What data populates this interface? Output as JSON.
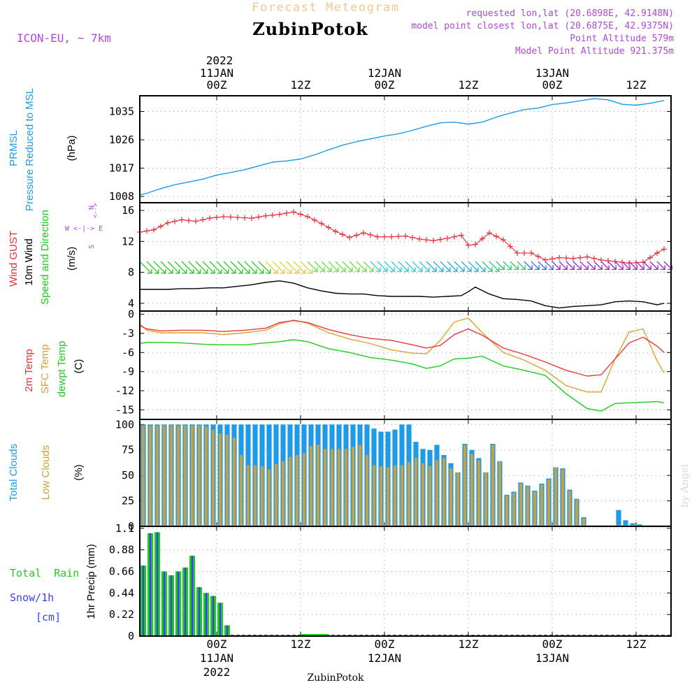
{
  "header": {
    "title": "Forecast Meteogram",
    "station": "ZubinPotok",
    "model": "ICON-EU, ~ 7km",
    "requested": "requested lon,lat (20.6898E, 42.9148N)",
    "closest": "model point closest lon,lat (20.6875E, 42.9375N)",
    "point_altitude": "Point Altitude 579m",
    "model_altitude": "Model Point Altitude 921.375m",
    "footer_station": "ZubinPotok",
    "credit": "by Angel"
  },
  "colors": {
    "pressure": "#1e9be8",
    "gust": "#e8303a",
    "wind": "#000000",
    "t2m": "#e83a3a",
    "sfc": "#e0a030",
    "dewpt": "#20cc20",
    "total_clouds": "#1e9be8",
    "low_clouds": "#c8a040",
    "rain": "#20cc20",
    "snow": "#3344ee",
    "title": "#f0c890",
    "info": "#b048d8"
  },
  "time_axis": {
    "top_year": "2022",
    "top_labels": [
      {
        "day": "11JAN",
        "hour": "00Z",
        "h": 0
      },
      {
        "day": "",
        "hour": "12Z",
        "h": 12
      },
      {
        "day": "12JAN",
        "hour": "00Z",
        "h": 24
      },
      {
        "day": "",
        "hour": "12Z",
        "h": 36
      },
      {
        "day": "13JAN",
        "hour": "00Z",
        "h": 48
      },
      {
        "day": "",
        "hour": "12Z",
        "h": 60
      }
    ],
    "bottom_year": "2022",
    "start_hour": -11,
    "end_hour": 65
  },
  "chart_data": [
    {
      "type": "line",
      "panel": "pressure",
      "ylabels": [
        "PRMSL",
        "Pressure Reduced to MSL",
        "(hPa)"
      ],
      "yticks": [
        1008,
        1017,
        1026,
        1035
      ],
      "ylim": [
        1006,
        1040
      ],
      "x": [
        -11,
        -10,
        -8,
        -6,
        -4,
        -2,
        0,
        2,
        4,
        6,
        8,
        10,
        12,
        14,
        16,
        18,
        20,
        22,
        24,
        26,
        28,
        30,
        32,
        34,
        36,
        38,
        40,
        42,
        44,
        46,
        48,
        50,
        52,
        54,
        56,
        58,
        60,
        62,
        64
      ],
      "series": [
        {
          "name": "PRMSL",
          "values": [
            1008.5,
            1009,
            1010.5,
            1011.7,
            1012.6,
            1013.5,
            1014.8,
            1015.6,
            1016.5,
            1017.7,
            1018.9,
            1019.3,
            1019.9,
            1021.2,
            1022.8,
            1024.3,
            1025.4,
            1026.3,
            1027.2,
            1027.9,
            1029.0,
            1030.3,
            1031.4,
            1031.6,
            1031.0,
            1031.6,
            1033.2,
            1034.5,
            1035.6,
            1036.1,
            1037.2,
            1037.7,
            1038.4,
            1039.1,
            1038.7,
            1037.3,
            1037.0,
            1037.6,
            1038.5
          ]
        }
      ]
    },
    {
      "type": "line",
      "panel": "wind",
      "ylabels": [
        "Wind GUST",
        "10m Wind",
        "Speed and Direction",
        "(m/s)"
      ],
      "compass": "N\nW <-|-> E\nS",
      "yticks": [
        4,
        8,
        12,
        16
      ],
      "ylim": [
        3,
        17
      ],
      "x": [
        -11,
        -9,
        -7,
        -5,
        -3,
        -1,
        1,
        3,
        5,
        7,
        9,
        11,
        13,
        15,
        17,
        19,
        21,
        23,
        25,
        27,
        29,
        31,
        33,
        35,
        36,
        37,
        39,
        41,
        43,
        45,
        47,
        49,
        51,
        53,
        55,
        57,
        59,
        61,
        63,
        64
      ],
      "series": [
        {
          "name": "Wind GUST",
          "values": [
            13.2,
            13.5,
            14.4,
            14.8,
            14.6,
            15.0,
            15.2,
            15.1,
            15.0,
            15.3,
            15.5,
            15.8,
            15.2,
            14.3,
            13.3,
            12.5,
            13.1,
            12.6,
            12.6,
            12.7,
            12.3,
            12.1,
            12.4,
            12.8,
            11.5,
            11.6,
            13.1,
            12.2,
            10.5,
            10.5,
            9.6,
            9.9,
            9.8,
            10.0,
            9.6,
            9.4,
            9.2,
            9.3,
            10.5,
            11.0
          ]
        },
        {
          "name": "10m Wind",
          "values": [
            5.8,
            5.8,
            5.8,
            5.9,
            5.9,
            6.0,
            6.0,
            6.2,
            6.4,
            6.7,
            6.9,
            6.6,
            6.0,
            5.6,
            5.3,
            5.2,
            5.2,
            5.0,
            4.9,
            4.9,
            4.9,
            4.8,
            4.9,
            5.0,
            5.5,
            6.1,
            5.2,
            4.6,
            4.5,
            4.3,
            3.7,
            3.4,
            3.6,
            3.7,
            3.8,
            4.2,
            4.3,
            4.2,
            3.8,
            4.0
          ]
        }
      ],
      "direction": "NW"
    },
    {
      "type": "line",
      "panel": "temperature",
      "ylabels": [
        "2m Temp",
        "SFC Temp",
        "dewpt Temp",
        "(C)"
      ],
      "yticks": [
        0,
        -3,
        -6,
        -9,
        -12,
        -15
      ],
      "ylim": [
        -16.5,
        0.5
      ],
      "x": [
        -11,
        -10,
        -8,
        -5,
        -2,
        1,
        4,
        7,
        9,
        11,
        13,
        16,
        19,
        22,
        25,
        28,
        30,
        32,
        34,
        36,
        38,
        41,
        44,
        47,
        50,
        53,
        55,
        57,
        59,
        61,
        63,
        64
      ],
      "series": [
        {
          "name": "2m Temp",
          "values": [
            -1.8,
            -2.3,
            -2.6,
            -2.5,
            -2.5,
            -2.7,
            -2.5,
            -2.2,
            -1.3,
            -1.0,
            -1.3,
            -2.4,
            -3.2,
            -3.8,
            -4.1,
            -4.8,
            -5.3,
            -4.9,
            -3.2,
            -2.3,
            -3.3,
            -5.3,
            -6.3,
            -7.5,
            -8.8,
            -9.7,
            -9.5,
            -7.0,
            -4.5,
            -3.6,
            -5.0,
            -6.0
          ]
        },
        {
          "name": "SFC Temp",
          "values": [
            -1.5,
            -2.5,
            -2.9,
            -2.9,
            -2.9,
            -3.2,
            -2.9,
            -2.5,
            -1.5,
            -0.9,
            -1.4,
            -2.9,
            -3.9,
            -4.6,
            -5.6,
            -6.1,
            -6.2,
            -4.1,
            -1.2,
            -0.6,
            -2.9,
            -6.0,
            -7.2,
            -8.8,
            -11.2,
            -12.2,
            -12.2,
            -7.0,
            -2.8,
            -2.3,
            -7.3,
            -9.2
          ]
        },
        {
          "name": "dewpt Temp",
          "values": [
            -4.6,
            -4.4,
            -4.4,
            -4.5,
            -4.7,
            -4.8,
            -4.8,
            -4.5,
            -4.3,
            -4.0,
            -4.3,
            -5.4,
            -6.0,
            -6.8,
            -7.2,
            -7.8,
            -8.5,
            -8.1,
            -7.0,
            -6.9,
            -6.6,
            -8.1,
            -8.8,
            -9.6,
            -12.5,
            -14.8,
            -15.2,
            -14.0,
            -13.9,
            -13.8,
            -13.7,
            -13.9
          ]
        }
      ]
    },
    {
      "type": "bar",
      "panel": "clouds",
      "ylabels": [
        "Total Clouds",
        "Low Clouds",
        "(%)"
      ],
      "yticks": [
        0,
        25,
        50,
        75,
        100
      ],
      "ylim": [
        0,
        105
      ],
      "x": [
        -11,
        -10,
        -9,
        -8,
        -7,
        -6,
        -5,
        -4,
        -3,
        -2,
        -1,
        0,
        1,
        2,
        3,
        4,
        5,
        6,
        7,
        8,
        9,
        10,
        11,
        12,
        13,
        14,
        15,
        16,
        17,
        18,
        19,
        20,
        21,
        22,
        23,
        24,
        25,
        26,
        27,
        28,
        29,
        30,
        31,
        32,
        33,
        34,
        35,
        36,
        37,
        38,
        39,
        40,
        41,
        42,
        43,
        44,
        45,
        46,
        47,
        48,
        49,
        50,
        51,
        52,
        53,
        54,
        55,
        56,
        57,
        58,
        59,
        60,
        61,
        62,
        63,
        64
      ],
      "series": [
        {
          "name": "Total Clouds",
          "values": [
            100,
            100,
            100,
            100,
            100,
            100,
            100,
            100,
            100,
            100,
            100,
            100,
            100,
            100,
            100,
            100,
            100,
            100,
            100,
            100,
            100,
            100,
            100,
            100,
            100,
            100,
            100,
            100,
            100,
            100,
            100,
            100,
            100,
            96,
            93,
            93,
            95,
            100,
            100,
            83,
            76,
            75,
            80,
            70,
            62,
            53,
            81,
            75,
            67,
            53,
            81,
            64,
            31,
            34,
            43,
            40,
            35,
            42,
            47,
            58,
            57,
            36,
            27,
            9,
            1,
            1,
            1,
            1,
            16,
            6,
            3,
            2,
            1,
            1,
            1,
            1
          ]
        },
        {
          "name": "Low Clouds",
          "values": [
            99,
            99,
            99,
            99,
            99,
            99,
            99,
            99,
            99,
            98,
            95,
            91,
            90,
            87,
            70,
            60,
            60,
            59,
            56,
            61,
            64,
            68,
            70,
            72,
            79,
            80,
            76,
            76,
            76,
            76,
            78,
            80,
            70,
            60,
            59,
            58,
            60,
            60,
            63,
            67,
            62,
            59,
            65,
            67,
            57,
            53,
            80,
            71,
            65,
            53,
            80,
            64,
            30,
            33,
            42,
            39,
            34,
            41,
            46,
            58,
            56,
            35,
            26,
            8,
            0,
            0,
            0,
            0,
            0,
            0,
            0,
            0,
            0,
            0,
            0,
            0
          ]
        }
      ]
    },
    {
      "type": "bar",
      "panel": "precip",
      "ylabels": [
        "Total  Rain",
        "Snow/1h",
        "[cm]",
        "1hr Precip (mm)"
      ],
      "yticks": [
        0,
        0.22,
        0.44,
        0.66,
        0.88,
        1.1
      ],
      "ylim": [
        0,
        1.12
      ],
      "x": [
        -11,
        -10,
        -9,
        -8,
        -7,
        -6,
        -5,
        -4,
        -3,
        -2,
        -1,
        0,
        1
      ],
      "series": [
        {
          "name": "Total Rain",
          "values": [
            0.72,
            1.05,
            1.06,
            0.66,
            0.62,
            0.66,
            0.7,
            0.82,
            0.5,
            0.44,
            0.41,
            0.34,
            0.11
          ]
        }
      ]
    }
  ]
}
